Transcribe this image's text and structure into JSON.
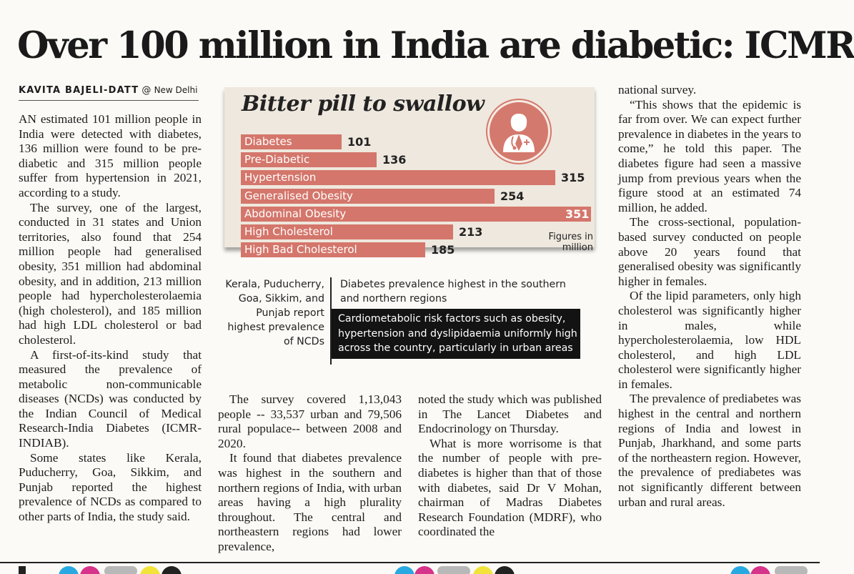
{
  "headline": "Over 100 million in India are diabetic: ICMR",
  "byline": {
    "author": "KAVITA BAJELI-DATT",
    "at": "@",
    "location": "New Delhi"
  },
  "columns": {
    "col1": [
      "AN estimated 101 million people in India were detected with diabetes, 136 million were found to be pre-diabetic and 315 million people suffer from hypertension in 2021, according to a study.",
      "The survey, one of the largest, conducted in 31 states and Union territories, also found that 254 million people had generalised obesity, 351 million had abdominal obesity, and in addition, 213 million people had hypercholesterolaemia (high cholesterol), and 185 million had high LDL cholesterol or bad cholesterol.",
      "A first-of-its-kind study that measured the prevalence of metabolic non-communicable diseases (NCDs) was conducted by the Indian Council of Medical Research-India Diabetes (ICMR-INDIAB).",
      "Some states like Kerala, Puducherry, Goa, Sikkim, and Punjab reported the highest prevalence of NCDs as compared to other parts of India, the study said."
    ],
    "col2": [
      "The survey covered 1,13,043 people -- 33,537 urban and 79,506 rural populace-- between 2008 and 2020.",
      "It found that diabetes prevalence was highest in the southern and northern regions of India, with urban areas having a high plurality throughout. The central and northeastern regions had lower prevalence,"
    ],
    "col3": [
      "noted the study which was published in The Lancet Diabetes and Endocrinology on Thursday.",
      "What is more worrisome is that the number of people with pre-diabetes is higher than that of those with diabetes, said Dr V Mohan, chairman of Madras Diabetes Research Foundation (MDRF), who coordinated the"
    ],
    "col4": [
      "national survey.",
      "“This shows that the epidemic is far from over. We can expect further prevalence in diabetes in the years to come,” he told this paper. The diabetes figure had seen a massive jump from previous years when the figure stood at an estimated 74 million, he added.",
      "The cross-sectional, population-based survey conducted on people above 20 years found that generalised obesity was significantly higher in females.",
      "Of the lipid parameters, only high cholesterol was significantly higher in males, while hypercholesterolaemia, low HDL cholesterol, and high LDL cholesterol were significantly higher in females.",
      "The prevalence of prediabetes was highest in the central and northern regions of India and lowest in Punjab, Jharkhand, and some parts of the northeastern region. However, the prevalence of prediabetes was not significantly different between urban and rural areas."
    ]
  },
  "infographic": {
    "figures_note": "Figures in million",
    "states_note": "Kerala, Puducherry, Goa, Sikkim, and Punjab report highest prevalence of NCDs",
    "south_note": "Diabetes prevalence highest in the southern and northern regions",
    "dark_note": "Cardiometabolic risk factors such as obesity, hypertension and dyslipidaemia uniformly high across the country, particularly in urban areas",
    "icon": "doctor-icon",
    "bar_color": "#d4766b"
  },
  "chart_data": {
    "type": "bar",
    "orientation": "horizontal",
    "title": "Bitter pill to swallow",
    "categories": [
      "Diabetes",
      "Pre-Diabetic",
      "Hypertension",
      "Generalised Obesity",
      "Abdominal Obesity",
      "High Cholesterol",
      "High Bad Cholesterol"
    ],
    "values": [
      101,
      136,
      315,
      254,
      351,
      213,
      185
    ],
    "unit": "Figures in million",
    "xlim": [
      0,
      351
    ],
    "grid": false,
    "legend": "none"
  }
}
